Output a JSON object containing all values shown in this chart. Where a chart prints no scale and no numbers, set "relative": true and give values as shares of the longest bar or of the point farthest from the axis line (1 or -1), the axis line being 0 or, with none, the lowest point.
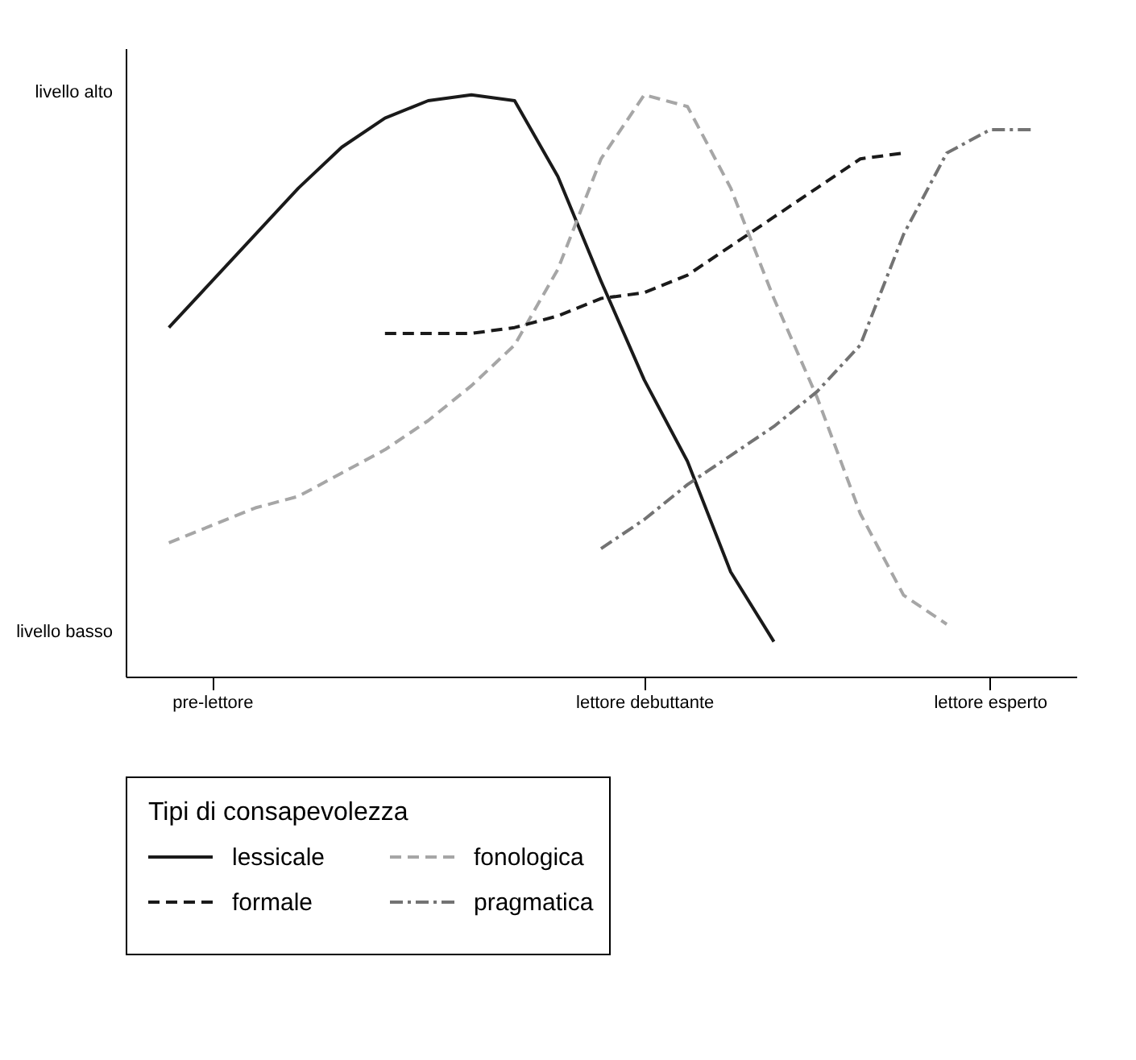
{
  "chart_data": {
    "type": "line",
    "relative": true,
    "legend_title": "Tipi di consapevolezza",
    "legend": "bottom",
    "grid": false,
    "marker": "none",
    "annotations": [
      "livello alto",
      "livello basso"
    ],
    "categories": [
      null,
      null,
      "pre-lettore",
      null,
      null,
      null,
      null,
      null,
      null,
      null,
      null,
      null,
      "lettore debuttante",
      null,
      null,
      null,
      null,
      null,
      null,
      null,
      "lettore esperto",
      null,
      null
    ],
    "series": [
      {
        "name": "lessicale",
        "color": "#1a1a1a",
        "line_style": "solid",
        "values": [
          null,
          0.6,
          0.68,
          0.76,
          0.84,
          0.91,
          0.96,
          0.99,
          1.0,
          0.99,
          0.86,
          0.68,
          0.51,
          0.37,
          0.18,
          0.06,
          null,
          null,
          null,
          null,
          null,
          null,
          null
        ]
      },
      {
        "name": "fonologica",
        "color": "#a6a6a6",
        "line_style": "dashed",
        "values": [
          null,
          0.23,
          0.26,
          0.29,
          0.31,
          0.35,
          0.39,
          0.44,
          0.5,
          0.57,
          0.7,
          0.89,
          1.0,
          0.98,
          0.84,
          0.65,
          0.48,
          0.28,
          0.14,
          0.09,
          null,
          null,
          null
        ]
      },
      {
        "name": "formale",
        "color": "#1a1a1a",
        "line_style": "dashed",
        "values": [
          null,
          null,
          null,
          null,
          null,
          null,
          0.59,
          0.59,
          0.59,
          0.6,
          0.62,
          0.65,
          0.66,
          0.69,
          0.74,
          0.79,
          0.84,
          0.89,
          0.9,
          null,
          null,
          null,
          null
        ]
      },
      {
        "name": "pragmatica",
        "color": "#737373",
        "line_style": "dashdot",
        "values": [
          null,
          null,
          null,
          null,
          null,
          null,
          null,
          null,
          null,
          null,
          null,
          0.22,
          0.27,
          0.33,
          0.38,
          0.43,
          0.49,
          0.57,
          0.76,
          0.9,
          0.94,
          0.94,
          null
        ]
      }
    ]
  }
}
